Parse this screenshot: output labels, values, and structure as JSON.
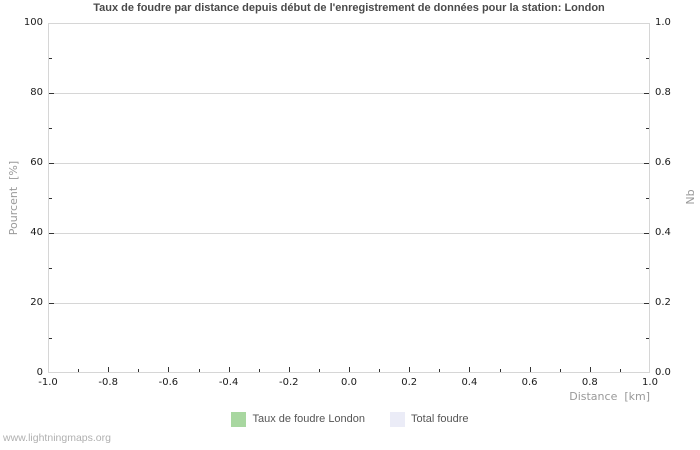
{
  "page": {
    "watermark": "www.lightningmaps.org"
  },
  "chart_data": {
    "type": "bar",
    "title": "Taux de foudre par distance depuis début de l'enregistrement de données pour la station: London",
    "station": "London",
    "x_axis": {
      "label": "Distance  [km]",
      "min": -1.0,
      "max": 1.0,
      "ticks": [
        "-1.0",
        "-0.8",
        "-0.6",
        "-0.4",
        "-0.2",
        "0.0",
        "0.2",
        "0.4",
        "0.6",
        "0.8",
        "1.0"
      ],
      "minor_tick_step": 0.1
    },
    "y_axis_left": {
      "label": "Pourcent  [%]",
      "min": 0,
      "max": 100,
      "ticks": [
        "0",
        "20",
        "40",
        "60",
        "80",
        "100"
      ],
      "minor_tick_step": 10
    },
    "y_axis_right": {
      "label": "Nb",
      "min": 0.0,
      "max": 1.0,
      "ticks": [
        "0.0",
        "0.2",
        "0.4",
        "0.6",
        "0.8",
        "1.0"
      ],
      "minor_tick_step": 0.1
    },
    "series": [
      {
        "name": "Taux de foudre London",
        "color": "#a8d7a0",
        "axis": "left",
        "values": []
      },
      {
        "name": "Total foudre",
        "color": "#ebecf7",
        "axis": "right",
        "values": []
      }
    ],
    "grid": "horizontal",
    "legend_position": "bottom-center"
  },
  "legend": {
    "items": [
      {
        "label": "Taux de foudre London",
        "color": "#a8d7a0"
      },
      {
        "label": "Total foudre",
        "color": "#ebecf7"
      }
    ]
  },
  "colors": {
    "background": "#ffffff",
    "plot_border": "#d6d6d6",
    "gridline": "#d6d6d6",
    "tick_mark": "#333333",
    "title_text": "#4a4a4a",
    "tick_label_text": "#1a1a1a",
    "axis_unit_text": "#999999",
    "legend_text": "#555555",
    "watermark_text": "#b0b0b0"
  }
}
